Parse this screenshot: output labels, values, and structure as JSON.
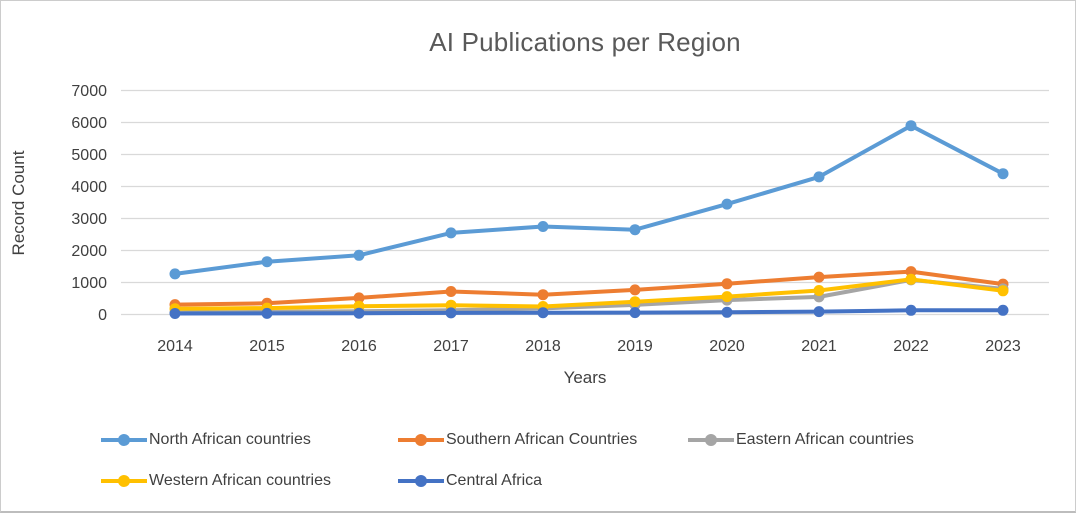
{
  "chart_data": {
    "type": "line",
    "title": "AI Publications per Region",
    "xlabel": "Years",
    "ylabel": "Record Count",
    "categories": [
      "2014",
      "2015",
      "2016",
      "2017",
      "2018",
      "2019",
      "2020",
      "2021",
      "2022",
      "2023"
    ],
    "ylim": [
      0,
      7000
    ],
    "yticks": [
      0,
      1000,
      2000,
      3000,
      4000,
      5000,
      6000,
      7000
    ],
    "grid": "horizontal",
    "gridline_color": "#d9d9d9",
    "tick_label_color": "#404040",
    "title_color": "#595959",
    "legend_position": "bottom",
    "series": [
      {
        "name": "North African countries",
        "color": "#5B9BD5",
        "values": [
          1270,
          1650,
          1850,
          2550,
          2750,
          2650,
          3450,
          4300,
          5900,
          4400
        ]
      },
      {
        "name": "Southern African Countries",
        "color": "#ED7D31",
        "values": [
          310,
          350,
          520,
          720,
          620,
          770,
          960,
          1170,
          1340,
          950
        ]
      },
      {
        "name": "Eastern African countries",
        "color": "#A5A5A5",
        "values": [
          60,
          80,
          100,
          130,
          190,
          300,
          450,
          550,
          1080,
          800
        ]
      },
      {
        "name": "Western African countries",
        "color": "#FFC000",
        "values": [
          180,
          200,
          260,
          290,
          250,
          400,
          560,
          750,
          1100,
          740
        ]
      },
      {
        "name": "Central Africa",
        "color": "#4472C4",
        "values": [
          30,
          35,
          40,
          50,
          55,
          60,
          70,
          90,
          130,
          130
        ]
      }
    ]
  }
}
